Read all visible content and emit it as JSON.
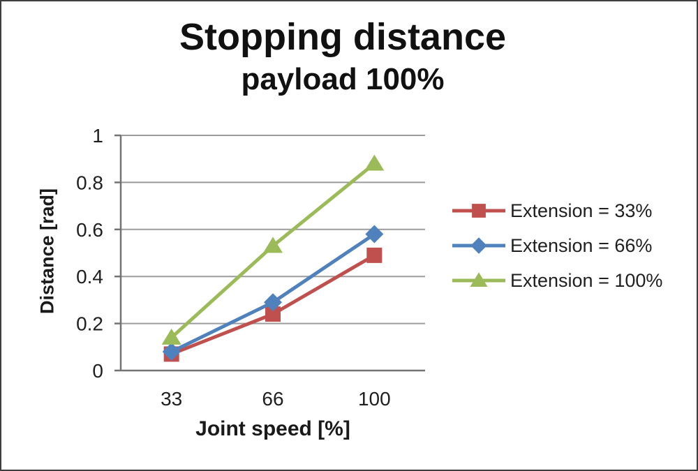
{
  "chart_data": {
    "type": "line",
    "title": "Stopping distance",
    "subtitle": "payload 100%",
    "xlabel": "Joint speed [%]",
    "ylabel": "Distance [rad]",
    "categories": [
      "33",
      "66",
      "100"
    ],
    "x_values": [
      33,
      66,
      100
    ],
    "ylim": [
      0,
      1
    ],
    "yticks": [
      0,
      0.2,
      0.4,
      0.6,
      0.8,
      1
    ],
    "ytick_labels": [
      "0",
      "0.2",
      "0.4",
      "0.6",
      "0.8",
      "1"
    ],
    "grid": "horizontal",
    "legend_position": "right",
    "series": [
      {
        "name": "Extension = 33%",
        "color": "#C0504D",
        "marker": "square",
        "values": [
          0.07,
          0.24,
          0.49
        ]
      },
      {
        "name": "Extension = 66%",
        "color": "#4F81BD",
        "marker": "diamond",
        "values": [
          0.08,
          0.29,
          0.58
        ]
      },
      {
        "name": "Extension = 100%",
        "color": "#9BBB59",
        "marker": "triangle",
        "values": [
          0.14,
          0.53,
          0.88
        ]
      }
    ]
  },
  "colors": {
    "grid": "#9b9b9b",
    "axis": "#737373",
    "text": "#1f1f1f",
    "background": "#ffffff",
    "frame_border": "#3f3f3f"
  }
}
